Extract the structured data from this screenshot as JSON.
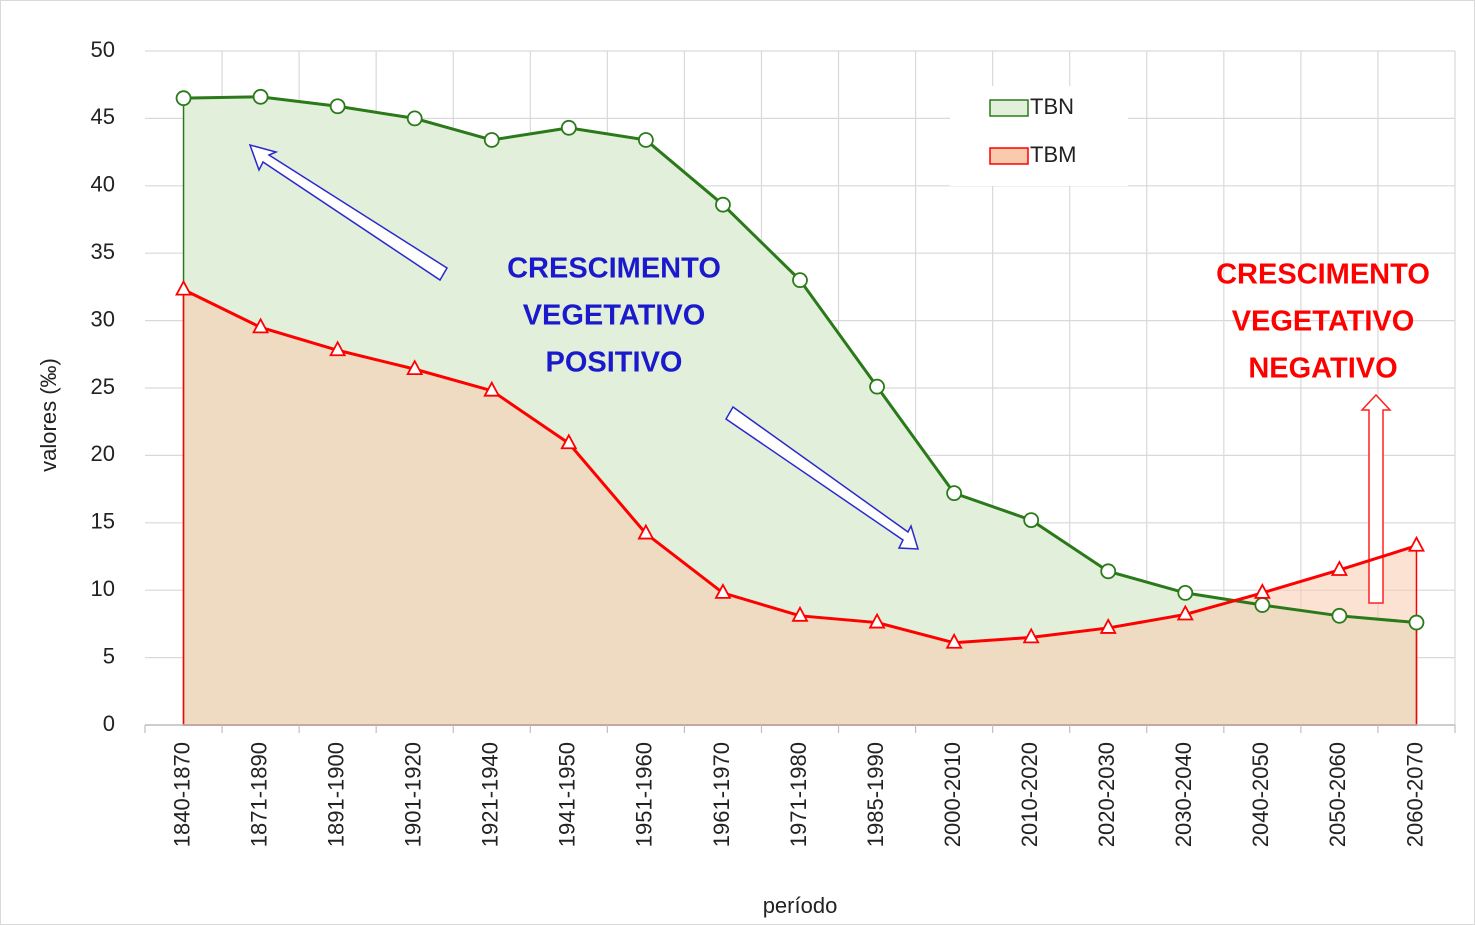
{
  "chart_data": {
    "type": "area-line",
    "x_label": "período",
    "y_label": "valores (‰)",
    "categories": [
      "1840-1870",
      "1871-1890",
      "1891-1900",
      "1901-1920",
      "1921-1940",
      "1941-1950",
      "1951-1960",
      "1961-1970",
      "1971-1980",
      "1985-1990",
      "2000-2010",
      "2010-2020",
      "2020-2030",
      "2030-2040",
      "2040-2050",
      "2050-2060",
      "2060-2070"
    ],
    "series": [
      {
        "name": "TBN",
        "color": "#2a7a1a",
        "fill": "#e2efda",
        "marker": "circle",
        "values": [
          46.5,
          46.6,
          45.9,
          45.0,
          43.4,
          44.3,
          43.4,
          38.6,
          33.0,
          25.1,
          17.2,
          15.2,
          11.4,
          9.8,
          8.9,
          8.1,
          7.6
        ]
      },
      {
        "name": "TBM",
        "color": "#ff0000",
        "fill": "#f8cbad",
        "marker": "triangle",
        "values": [
          32.3,
          29.5,
          27.8,
          26.4,
          24.8,
          20.9,
          14.2,
          9.8,
          8.1,
          7.6,
          6.1,
          6.5,
          7.2,
          8.2,
          9.8,
          11.5,
          13.3
        ]
      }
    ],
    "ylim": [
      0,
      50
    ],
    "yticks": [
      0,
      5,
      10,
      15,
      20,
      25,
      30,
      35,
      40,
      45,
      50
    ],
    "grid": true,
    "annotations": [
      {
        "lines": [
          "CRESCIMENTO",
          "VEGETATIVO",
          "POSITIVO"
        ],
        "color": "#1a1acc"
      },
      {
        "lines": [
          "CRESCIMENTO",
          "VEGETATIVO",
          "NEGATIVO"
        ],
        "color": "#ff0000"
      }
    ]
  }
}
